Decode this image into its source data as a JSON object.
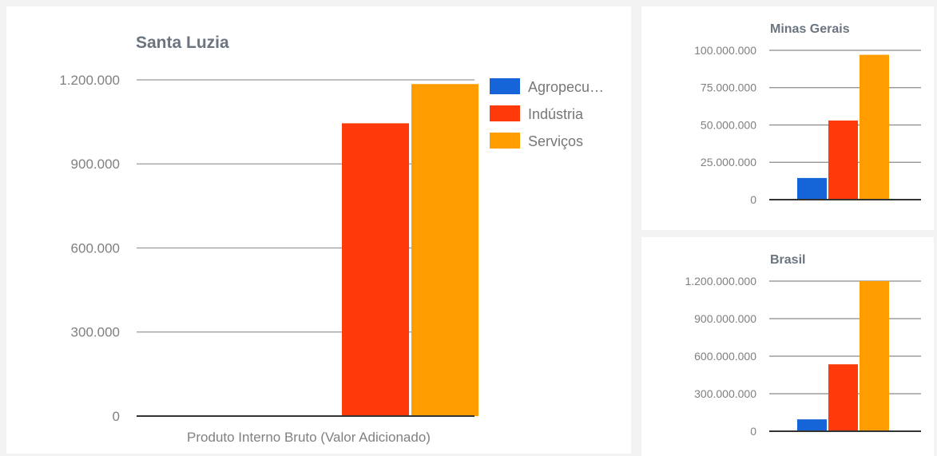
{
  "chart_data": [
    {
      "id": "main",
      "type": "bar",
      "title": "Santa Luzia",
      "categories": [
        "Produto Interno Bruto (Valor Adicionado)"
      ],
      "xlabel": "",
      "ylabel": "",
      "ylim": [
        0,
        1200000
      ],
      "yticks": [
        "0",
        "300.000",
        "600.000",
        "900.000",
        "1.200.000"
      ],
      "ytick_values": [
        0,
        300000,
        600000,
        900000,
        1200000
      ],
      "series": [
        {
          "name": "Agropecu…",
          "color": "#1565d8",
          "values": [
            0
          ]
        },
        {
          "name": "Indústria",
          "color": "#ff3a0a",
          "values": [
            1045000
          ]
        },
        {
          "name": "Serviços",
          "color": "#ff9d00",
          "values": [
            1185000
          ]
        }
      ],
      "legend": "right",
      "grid": true
    },
    {
      "id": "mg",
      "type": "bar",
      "title": "Minas Gerais",
      "categories": [
        ""
      ],
      "ylim": [
        0,
        100000000
      ],
      "yticks": [
        "0",
        "25.000.000",
        "50.000.000",
        "75.000.000",
        "100.000.000"
      ],
      "ytick_values": [
        0,
        25000000,
        50000000,
        75000000,
        100000000
      ],
      "series": [
        {
          "color": "#1565d8",
          "values": [
            14500000
          ]
        },
        {
          "color": "#ff3a0a",
          "values": [
            53000000
          ]
        },
        {
          "color": "#ff9d00",
          "values": [
            97000000
          ]
        }
      ],
      "grid": true
    },
    {
      "id": "br",
      "type": "bar",
      "title": "Brasil",
      "categories": [
        ""
      ],
      "ylim": [
        0,
        1200000000
      ],
      "yticks": [
        "0",
        "300.000.000",
        "600.000.000",
        "900.000.000",
        "1.200.000.000"
      ],
      "ytick_values": [
        0,
        300000000,
        600000000,
        900000000,
        1200000000
      ],
      "series": [
        {
          "color": "#1565d8",
          "values": [
            95000000
          ]
        },
        {
          "color": "#ff3a0a",
          "values": [
            535000000
          ]
        },
        {
          "color": "#ff9d00",
          "values": [
            1200000000
          ]
        }
      ],
      "grid": true
    }
  ]
}
